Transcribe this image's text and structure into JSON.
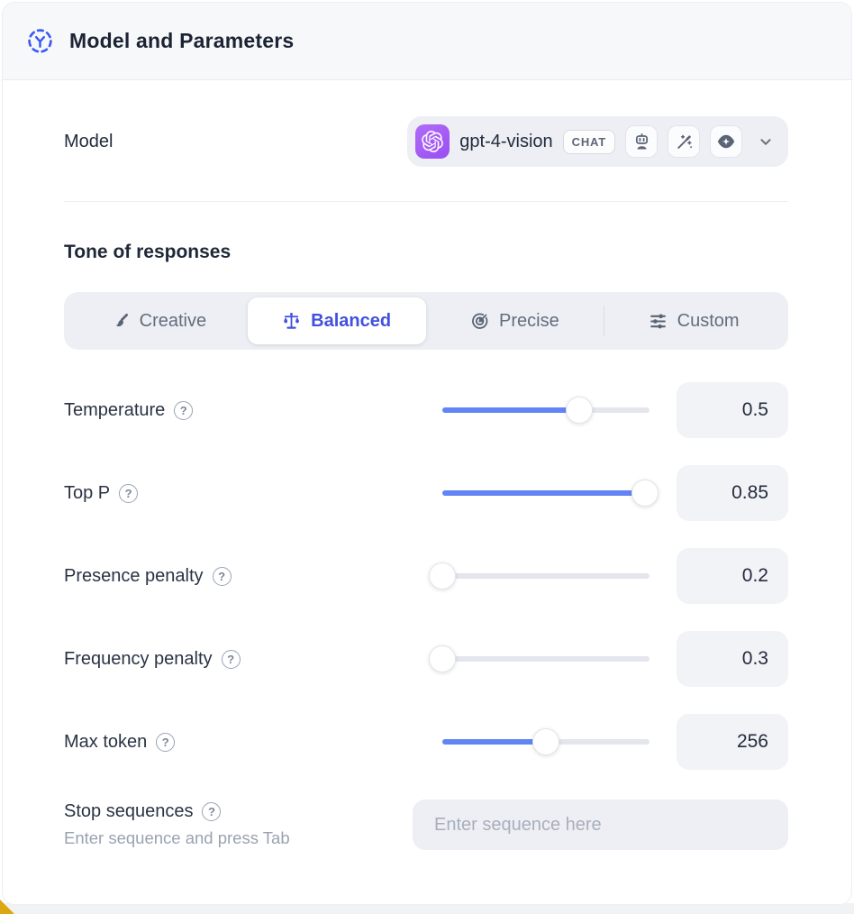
{
  "header": {
    "title": "Model and Parameters",
    "icon": "model-scan-icon"
  },
  "model_row": {
    "label": "Model",
    "selected_model": "gpt-4-vision",
    "type_badge": "CHAT",
    "provider_icon": "openai-logo",
    "capability_icons": [
      "assistant-robot-icon",
      "magic-wand-icon",
      "vision-eye-icon"
    ],
    "dropdown_icon": "chevron-down-icon"
  },
  "tone": {
    "heading": "Tone of responses",
    "options": [
      {
        "label": "Creative",
        "icon": "paintbrush-icon",
        "selected": false
      },
      {
        "label": "Balanced",
        "icon": "balance-scale-icon",
        "selected": true
      },
      {
        "label": "Precise",
        "icon": "target-icon",
        "selected": false
      },
      {
        "label": "Custom",
        "icon": "sliders-icon",
        "selected": false
      }
    ]
  },
  "params": [
    {
      "label": "Temperature",
      "value": "0.5",
      "fill_pct": 66
    },
    {
      "label": "Top P",
      "value": "0.85",
      "fill_pct": 98
    },
    {
      "label": "Presence penalty",
      "value": "0.2",
      "fill_pct": 0
    },
    {
      "label": "Frequency penalty",
      "value": "0.3",
      "fill_pct": 0
    },
    {
      "label": "Max token",
      "value": "256",
      "fill_pct": 50
    }
  ],
  "help_icon_glyph": "?",
  "stop_sequences": {
    "label": "Stop sequences",
    "hint": "Enter sequence and press Tab",
    "placeholder": "Enter sequence here",
    "value": ""
  },
  "colors": {
    "accent_blue": "#4150e0",
    "slider_blue": "#6384f5",
    "header_icon_blue": "#3b5cf0",
    "provider_purple": "#a158f5",
    "panel_header_bg": "#f7f8fa",
    "control_bg": "#edeff4",
    "value_box_bg": "#f2f3f7"
  }
}
